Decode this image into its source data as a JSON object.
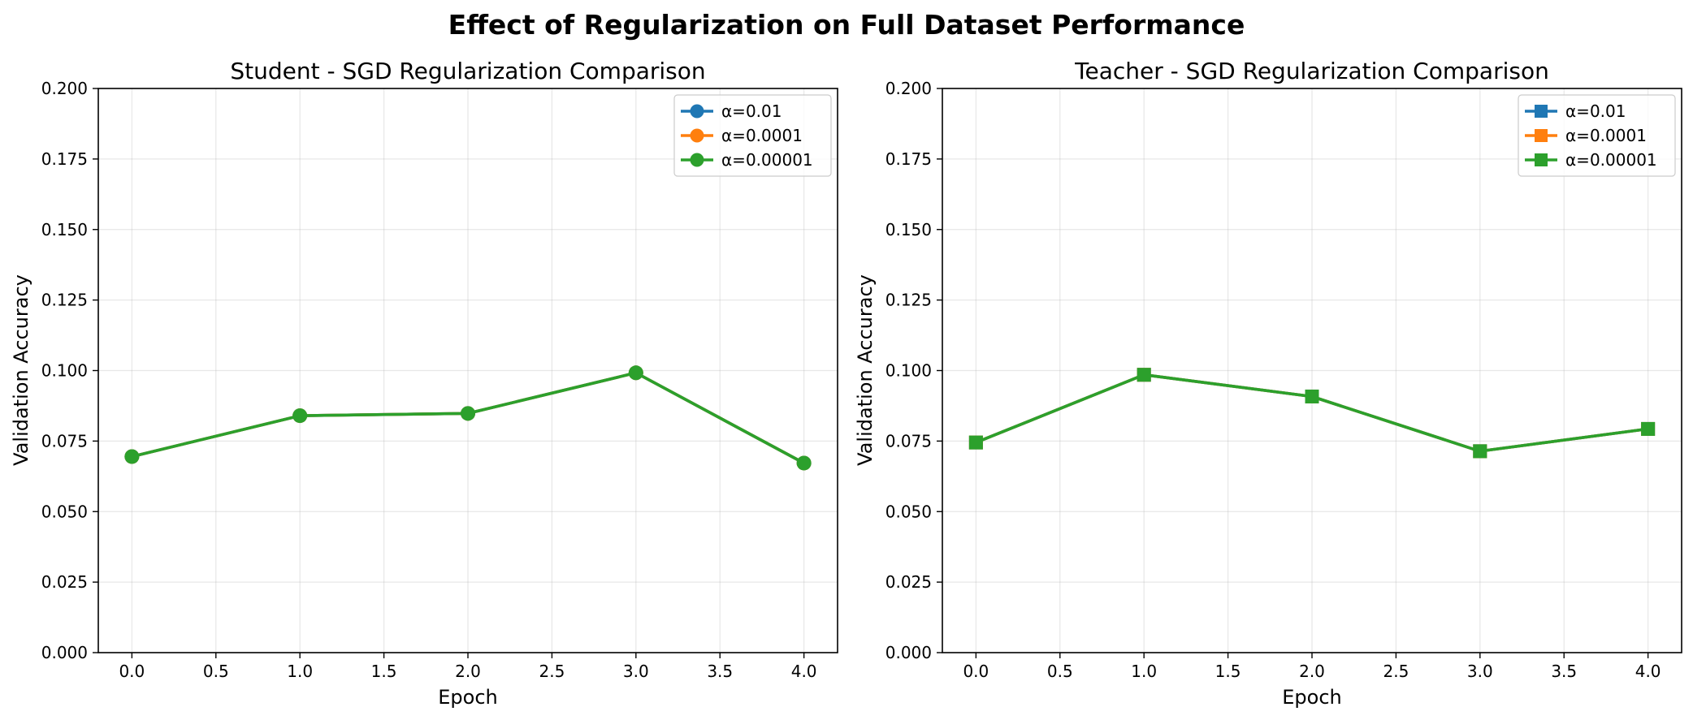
{
  "figure": {
    "title": "Effect of Regularization on Full Dataset Performance"
  },
  "chart_data": [
    {
      "type": "line",
      "title": "Student - SGD Regularization Comparison",
      "xlabel": "Epoch",
      "ylabel": "Validation Accuracy",
      "x": [
        0,
        1,
        2,
        3,
        4
      ],
      "xlim": [
        -0.2,
        4.2
      ],
      "ylim": [
        0,
        0.2
      ],
      "xticks": [
        "0.0",
        "0.5",
        "1.0",
        "1.5",
        "2.0",
        "2.5",
        "3.0",
        "3.5",
        "4.0"
      ],
      "yticks": [
        "0.000",
        "0.025",
        "0.050",
        "0.075",
        "0.100",
        "0.125",
        "0.150",
        "0.175",
        "0.200"
      ],
      "marker": "circle",
      "grid": true,
      "legend_position": "top-right",
      "series": [
        {
          "name": "α=0.01",
          "color": "#1f77b4",
          "values": [
            0.0695,
            0.084,
            0.0848,
            0.0992,
            0.0672
          ]
        },
        {
          "name": "α=0.0001",
          "color": "#ff7f0e",
          "values": [
            0.0695,
            0.084,
            0.0848,
            0.0992,
            0.0672
          ]
        },
        {
          "name": "α=0.00001",
          "color": "#2ca02c",
          "values": [
            0.0695,
            0.084,
            0.0848,
            0.0992,
            0.0672
          ]
        }
      ]
    },
    {
      "type": "line",
      "title": "Teacher - SGD Regularization Comparison",
      "xlabel": "Epoch",
      "ylabel": "Validation Accuracy",
      "x": [
        0,
        1,
        2,
        3,
        4
      ],
      "xlim": [
        -0.2,
        4.2
      ],
      "ylim": [
        0,
        0.2
      ],
      "xticks": [
        "0.0",
        "0.5",
        "1.0",
        "1.5",
        "2.0",
        "2.5",
        "3.0",
        "3.5",
        "4.0"
      ],
      "yticks": [
        "0.000",
        "0.025",
        "0.050",
        "0.075",
        "0.100",
        "0.125",
        "0.150",
        "0.175",
        "0.200"
      ],
      "marker": "square",
      "grid": true,
      "legend_position": "top-right",
      "series": [
        {
          "name": "α=0.01",
          "color": "#1f77b4",
          "values": [
            0.0745,
            0.0985,
            0.0908,
            0.0714,
            0.0793
          ]
        },
        {
          "name": "α=0.0001",
          "color": "#ff7f0e",
          "values": [
            0.0745,
            0.0985,
            0.0908,
            0.0714,
            0.0793
          ]
        },
        {
          "name": "α=0.00001",
          "color": "#2ca02c",
          "values": [
            0.0745,
            0.0985,
            0.0908,
            0.0714,
            0.0793
          ]
        }
      ]
    }
  ]
}
